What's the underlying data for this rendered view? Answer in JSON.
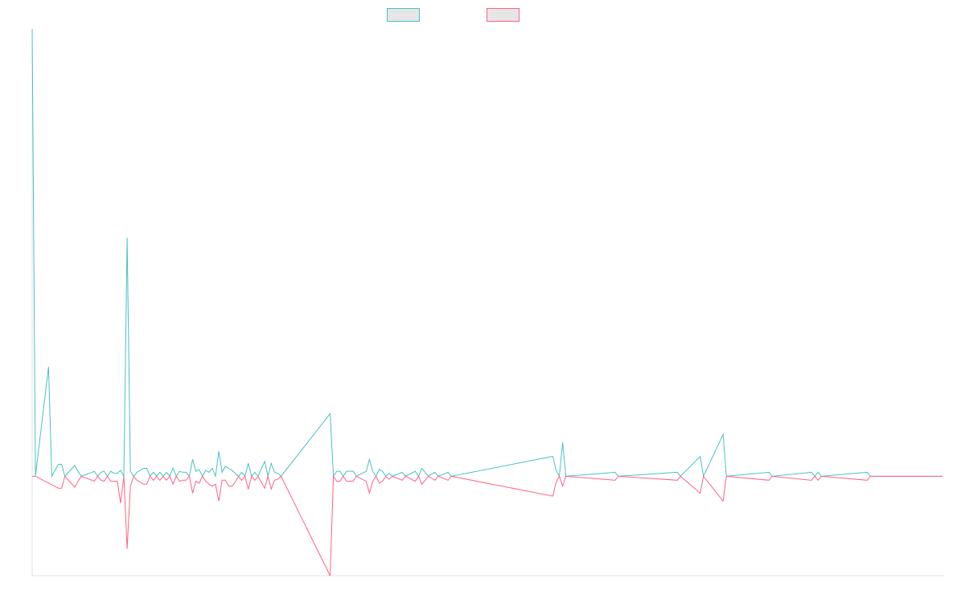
{
  "chart_data": {
    "type": "line",
    "title": "",
    "xlabel": "",
    "ylabel": "",
    "grid": false,
    "legend_position": "top-center",
    "ylim": [
      -1.0,
      4.5
    ],
    "x_count": 279,
    "baseline": 0,
    "series": [
      {
        "name": "",
        "color": "#4bc0c0",
        "fill": "#e6e6e6",
        "points": [
          [
            0,
            4.5
          ],
          [
            1,
            0
          ],
          [
            5,
            1.1
          ],
          [
            6,
            0
          ],
          [
            8,
            0.12
          ],
          [
            9,
            0.12
          ],
          [
            10,
            0
          ],
          [
            13,
            0.11
          ],
          [
            14,
            0.05
          ],
          [
            15,
            0
          ],
          [
            19,
            0.05
          ],
          [
            20,
            0
          ],
          [
            21,
            0.04
          ],
          [
            22,
            0.05
          ],
          [
            23,
            0
          ],
          [
            24,
            0.05
          ],
          [
            25,
            0.03
          ],
          [
            26,
            0.03
          ],
          [
            27,
            0.06
          ],
          [
            28,
            0
          ],
          [
            29,
            2.4
          ],
          [
            30,
            0.05
          ],
          [
            31,
            0
          ],
          [
            32,
            0.04
          ],
          [
            33,
            0.06
          ],
          [
            34,
            0.08
          ],
          [
            35,
            0.08
          ],
          [
            36,
            0
          ],
          [
            37,
            0.04
          ],
          [
            38,
            0
          ],
          [
            39,
            0.04
          ],
          [
            40,
            0
          ],
          [
            41,
            0.04
          ],
          [
            42,
            0
          ],
          [
            43,
            0.08
          ],
          [
            44,
            0
          ],
          [
            45,
            0.05
          ],
          [
            46,
            0.04
          ],
          [
            47,
            0.04
          ],
          [
            48,
            0
          ],
          [
            49,
            0.17
          ],
          [
            50,
            0.05
          ],
          [
            51,
            0.07
          ],
          [
            52,
            0
          ],
          [
            53,
            0.06
          ],
          [
            54,
            0.04
          ],
          [
            55,
            0.08
          ],
          [
            56,
            0
          ],
          [
            57,
            0.25
          ],
          [
            58,
            0.04
          ],
          [
            59,
            0.1
          ],
          [
            60,
            0.08
          ],
          [
            61,
            0.06
          ],
          [
            62,
            0.03
          ],
          [
            63,
            0
          ],
          [
            64,
            0.04
          ],
          [
            65,
            0
          ],
          [
            66,
            0.13
          ],
          [
            67,
            0
          ],
          [
            68,
            0.04
          ],
          [
            69,
            0
          ],
          [
            71,
            0.15
          ],
          [
            72,
            0
          ],
          [
            73,
            0.13
          ],
          [
            74,
            0.04
          ],
          [
            75,
            0.03
          ],
          [
            76,
            0
          ],
          [
            91,
            0.63
          ],
          [
            92,
            0
          ],
          [
            93,
            0.05
          ],
          [
            94,
            0.05
          ],
          [
            95,
            0
          ],
          [
            96,
            0.05
          ],
          [
            97,
            0.05
          ],
          [
            98,
            0.05
          ],
          [
            99,
            0
          ],
          [
            102,
            0.05
          ],
          [
            103,
            0.17
          ],
          [
            104,
            0.05
          ],
          [
            105,
            0
          ],
          [
            106,
            0.07
          ],
          [
            107,
            0.05
          ],
          [
            108,
            0
          ],
          [
            109,
            0.03
          ],
          [
            110,
            0
          ],
          [
            113,
            0.04
          ],
          [
            114,
            0
          ],
          [
            117,
            0.05
          ],
          [
            118,
            0
          ],
          [
            119,
            0.08
          ],
          [
            120,
            0.04
          ],
          [
            121,
            0
          ],
          [
            123,
            0.04
          ],
          [
            124,
            0
          ],
          [
            127,
            0.04
          ],
          [
            128,
            0
          ],
          [
            159,
            0.2
          ],
          [
            160,
            0.06
          ],
          [
            161,
            0
          ],
          [
            162,
            0.34
          ],
          [
            163,
            0
          ],
          [
            178,
            0.04
          ],
          [
            179,
            0
          ],
          [
            197,
            0.04
          ],
          [
            198,
            0
          ],
          [
            204,
            0.2
          ],
          [
            205,
            0
          ],
          [
            211,
            0.42
          ],
          [
            212,
            0
          ],
          [
            225,
            0.04
          ],
          [
            226,
            0
          ],
          [
            238,
            0.04
          ],
          [
            239,
            0
          ],
          [
            240,
            0.04
          ],
          [
            241,
            0
          ],
          [
            255,
            0.04
          ],
          [
            256,
            0
          ],
          [
            278,
            0
          ]
        ]
      },
      {
        "name": "",
        "color": "#ff6384",
        "fill": "#e6e6e6",
        "points": [
          [
            0,
            0
          ],
          [
            1,
            0
          ],
          [
            8,
            -0.12
          ],
          [
            9,
            -0.12
          ],
          [
            10,
            0
          ],
          [
            13,
            -0.11
          ],
          [
            14,
            -0.05
          ],
          [
            15,
            0
          ],
          [
            19,
            -0.05
          ],
          [
            20,
            0
          ],
          [
            21,
            -0.04
          ],
          [
            22,
            -0.05
          ],
          [
            23,
            0
          ],
          [
            24,
            -0.05
          ],
          [
            25,
            -0.05
          ],
          [
            26,
            -0.05
          ],
          [
            27,
            -0.27
          ],
          [
            28,
            0
          ],
          [
            29,
            -0.73
          ],
          [
            30,
            -0.1
          ],
          [
            31,
            0
          ],
          [
            32,
            -0.04
          ],
          [
            33,
            -0.06
          ],
          [
            34,
            -0.08
          ],
          [
            35,
            -0.08
          ],
          [
            36,
            0
          ],
          [
            37,
            -0.04
          ],
          [
            38,
            0
          ],
          [
            39,
            -0.04
          ],
          [
            40,
            0
          ],
          [
            41,
            -0.04
          ],
          [
            42,
            0
          ],
          [
            43,
            -0.08
          ],
          [
            44,
            0
          ],
          [
            45,
            -0.05
          ],
          [
            46,
            -0.04
          ],
          [
            47,
            -0.04
          ],
          [
            48,
            0
          ],
          [
            49,
            -0.17
          ],
          [
            50,
            -0.05
          ],
          [
            51,
            -0.07
          ],
          [
            52,
            0
          ],
          [
            53,
            -0.05
          ],
          [
            54,
            -0.08
          ],
          [
            55,
            -0.1
          ],
          [
            56,
            -0.08
          ],
          [
            57,
            -0.25
          ],
          [
            58,
            -0.04
          ],
          [
            59,
            -0.04
          ],
          [
            60,
            -0.1
          ],
          [
            61,
            -0.1
          ],
          [
            62,
            -0.06
          ],
          [
            63,
            0
          ],
          [
            64,
            -0.04
          ],
          [
            65,
            0
          ],
          [
            66,
            -0.13
          ],
          [
            67,
            0
          ],
          [
            68,
            -0.04
          ],
          [
            69,
            0
          ],
          [
            71,
            -0.12
          ],
          [
            72,
            0
          ],
          [
            73,
            -0.13
          ],
          [
            74,
            -0.04
          ],
          [
            75,
            -0.03
          ],
          [
            76,
            0
          ],
          [
            91,
            -1.0
          ],
          [
            92,
            0
          ],
          [
            93,
            -0.05
          ],
          [
            94,
            -0.05
          ],
          [
            95,
            0
          ],
          [
            96,
            -0.05
          ],
          [
            97,
            -0.05
          ],
          [
            98,
            -0.05
          ],
          [
            99,
            0
          ],
          [
            102,
            -0.05
          ],
          [
            103,
            -0.17
          ],
          [
            104,
            -0.05
          ],
          [
            105,
            0
          ],
          [
            106,
            -0.07
          ],
          [
            107,
            -0.05
          ],
          [
            108,
            0
          ],
          [
            109,
            -0.03
          ],
          [
            110,
            0
          ],
          [
            113,
            -0.04
          ],
          [
            114,
            0
          ],
          [
            117,
            -0.05
          ],
          [
            118,
            0
          ],
          [
            119,
            -0.08
          ],
          [
            120,
            -0.04
          ],
          [
            121,
            0
          ],
          [
            123,
            -0.04
          ],
          [
            124,
            0
          ],
          [
            127,
            -0.04
          ],
          [
            128,
            0
          ],
          [
            159,
            -0.2
          ],
          [
            160,
            -0.06
          ],
          [
            161,
            0
          ],
          [
            162,
            -0.1
          ],
          [
            163,
            0
          ],
          [
            178,
            -0.04
          ],
          [
            179,
            0
          ],
          [
            197,
            -0.04
          ],
          [
            198,
            0
          ],
          [
            204,
            -0.17
          ],
          [
            205,
            0
          ],
          [
            211,
            -0.25
          ],
          [
            212,
            0
          ],
          [
            225,
            -0.04
          ],
          [
            226,
            0
          ],
          [
            238,
            -0.04
          ],
          [
            239,
            0
          ],
          [
            240,
            -0.04
          ],
          [
            241,
            0
          ],
          [
            255,
            -0.04
          ],
          [
            256,
            0
          ],
          [
            278,
            0
          ]
        ]
      }
    ]
  }
}
